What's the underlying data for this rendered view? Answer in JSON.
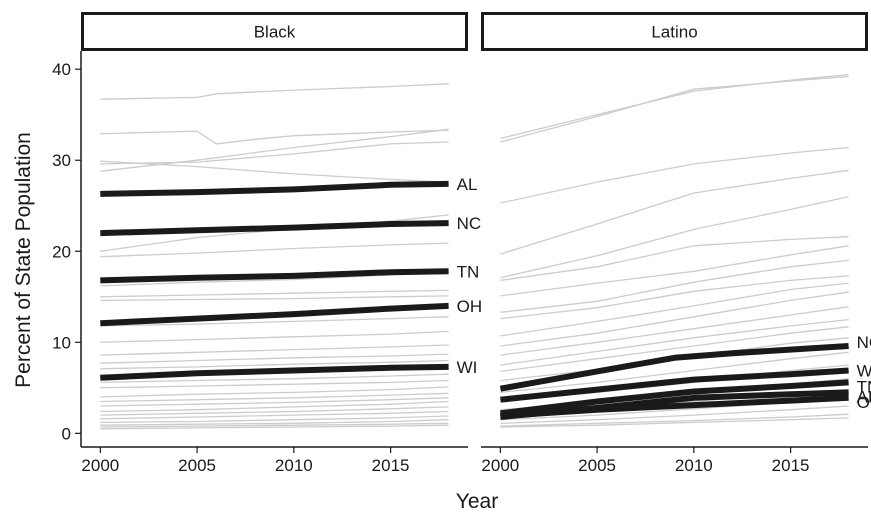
{
  "chart_data": {
    "type": "line",
    "xlabel": "Year",
    "ylabel": "Percent of State Population",
    "xlim": [
      1999,
      2019
    ],
    "ylim": [
      -1.5,
      42
    ],
    "xticks": [
      2000,
      2005,
      2010,
      2015
    ],
    "yticks": [
      0,
      10,
      20,
      30,
      40
    ],
    "grid": false,
    "colors": {
      "highlight": "#1a1a1a",
      "background": "#cccccc"
    },
    "panels": [
      {
        "title": "Black",
        "highlighted": [
          {
            "name": "AL",
            "x": [
              2000,
              2005,
              2010,
              2015,
              2018
            ],
            "y": [
              26.3,
              26.5,
              26.8,
              27.3,
              27.4
            ]
          },
          {
            "name": "NC",
            "x": [
              2000,
              2005,
              2010,
              2015,
              2018
            ],
            "y": [
              22.0,
              22.3,
              22.6,
              23.0,
              23.1
            ]
          },
          {
            "name": "TN",
            "x": [
              2000,
              2005,
              2010,
              2015,
              2018
            ],
            "y": [
              16.8,
              17.1,
              17.3,
              17.7,
              17.8
            ]
          },
          {
            "name": "OH",
            "x": [
              2000,
              2005,
              2010,
              2015,
              2018
            ],
            "y": [
              12.1,
              12.6,
              13.1,
              13.7,
              14.0
            ]
          },
          {
            "name": "WI",
            "x": [
              2000,
              2005,
              2010,
              2015,
              2018
            ],
            "y": [
              6.1,
              6.6,
              6.9,
              7.2,
              7.3
            ]
          }
        ],
        "others": [
          {
            "x": [
              2000,
              2005,
              2006,
              2010,
              2015,
              2018
            ],
            "y": [
              36.7,
              36.9,
              37.3,
              37.7,
              38.1,
              38.4
            ]
          },
          {
            "x": [
              2000,
              2005,
              2006,
              2008,
              2010,
              2015,
              2018
            ],
            "y": [
              32.9,
              33.2,
              31.8,
              32.3,
              32.7,
              33.1,
              33.3
            ]
          },
          {
            "x": [
              2000,
              2005,
              2010,
              2015,
              2018
            ],
            "y": [
              28.8,
              30.0,
              31.4,
              32.6,
              33.4
            ]
          },
          {
            "x": [
              2000,
              2005,
              2010,
              2015,
              2018
            ],
            "y": [
              29.9,
              29.3,
              28.5,
              27.9,
              27.6
            ]
          },
          {
            "x": [
              2000,
              2005,
              2010,
              2015,
              2018
            ],
            "y": [
              29.6,
              29.8,
              30.7,
              31.8,
              32.0
            ]
          },
          {
            "x": [
              2000,
              2005,
              2010,
              2015,
              2018
            ],
            "y": [
              20.0,
              21.5,
              22.5,
              23.3,
              24.0
            ]
          },
          {
            "x": [
              2000,
              2005,
              2010,
              2015,
              2018
            ],
            "y": [
              19.4,
              19.8,
              20.3,
              20.7,
              20.9
            ]
          },
          {
            "x": [
              2000,
              2005,
              2010,
              2015,
              2018
            ],
            "y": [
              16.2,
              16.6,
              16.9,
              17.4,
              17.8
            ]
          },
          {
            "x": [
              2000,
              2005,
              2010,
              2015,
              2018
            ],
            "y": [
              15.0,
              15.2,
              15.4,
              15.6,
              15.7
            ]
          },
          {
            "x": [
              2000,
              2005,
              2010,
              2015,
              2018
            ],
            "y": [
              14.6,
              14.7,
              14.8,
              15.0,
              15.1
            ]
          },
          {
            "x": [
              2000,
              2005,
              2010,
              2015,
              2018
            ],
            "y": [
              11.8,
              12.0,
              12.3,
              12.6,
              12.8
            ]
          },
          {
            "x": [
              2000,
              2005,
              2010,
              2015,
              2018
            ],
            "y": [
              10.0,
              10.3,
              10.6,
              10.9,
              11.2
            ]
          },
          {
            "x": [
              2000,
              2005,
              2010,
              2015,
              2018
            ],
            "y": [
              8.6,
              8.9,
              9.2,
              9.5,
              9.7
            ]
          },
          {
            "x": [
              2000,
              2005,
              2010,
              2015,
              2018
            ],
            "y": [
              7.7,
              8.0,
              8.3,
              8.5,
              8.7
            ]
          },
          {
            "x": [
              2000,
              2005,
              2010,
              2015,
              2018
            ],
            "y": [
              7.1,
              7.3,
              7.6,
              7.8,
              8.0
            ]
          },
          {
            "x": [
              2000,
              2005,
              2010,
              2015,
              2018
            ],
            "y": [
              5.6,
              5.8,
              6.0,
              6.3,
              6.5
            ]
          },
          {
            "x": [
              2000,
              2005,
              2010,
              2015,
              2018
            ],
            "y": [
              5.0,
              5.2,
              5.4,
              5.6,
              5.8
            ]
          },
          {
            "x": [
              2000,
              2005,
              2010,
              2015,
              2018
            ],
            "y": [
              4.0,
              4.3,
              4.5,
              4.8,
              5.1
            ]
          },
          {
            "x": [
              2000,
              2005,
              2010,
              2015,
              2018
            ],
            "y": [
              3.5,
              3.7,
              3.9,
              4.2,
              4.4
            ]
          },
          {
            "x": [
              2000,
              2005,
              2010,
              2015,
              2018
            ],
            "y": [
              3.0,
              3.2,
              3.4,
              3.7,
              3.9
            ]
          },
          {
            "x": [
              2000,
              2005,
              2010,
              2015,
              2018
            ],
            "y": [
              2.4,
              2.6,
              2.9,
              3.2,
              3.5
            ]
          },
          {
            "x": [
              2000,
              2005,
              2010,
              2015,
              2018
            ],
            "y": [
              2.0,
              2.2,
              2.4,
              2.7,
              2.9
            ]
          },
          {
            "x": [
              2000,
              2005,
              2010,
              2015,
              2018
            ],
            "y": [
              1.6,
              1.8,
              2.0,
              2.2,
              2.4
            ]
          },
          {
            "x": [
              2000,
              2005,
              2010,
              2015,
              2018
            ],
            "y": [
              1.2,
              1.3,
              1.5,
              1.7,
              1.9
            ]
          },
          {
            "x": [
              2000,
              2005,
              2010,
              2015,
              2018
            ],
            "y": [
              0.9,
              1.0,
              1.1,
              1.3,
              1.5
            ]
          },
          {
            "x": [
              2000,
              2005,
              2010,
              2015,
              2018
            ],
            "y": [
              0.7,
              0.8,
              0.9,
              1.0,
              1.1
            ]
          },
          {
            "x": [
              2000,
              2005,
              2010,
              2015,
              2018
            ],
            "y": [
              0.5,
              0.6,
              0.7,
              0.8,
              0.9
            ]
          }
        ]
      },
      {
        "title": "Latino",
        "highlighted": [
          {
            "name": "NC",
            "x": [
              2000,
              2005,
              2009,
              2012,
              2018
            ],
            "y": [
              4.9,
              6.8,
              8.3,
              8.8,
              9.6
            ]
          },
          {
            "name": "WI",
            "x": [
              2000,
              2005,
              2010,
              2015,
              2018
            ],
            "y": [
              3.7,
              4.8,
              5.9,
              6.5,
              6.9
            ]
          },
          {
            "name": "TN",
            "x": [
              2000,
              2005,
              2010,
              2015,
              2018
            ],
            "y": [
              2.2,
              3.5,
              4.6,
              5.2,
              5.6
            ]
          },
          {
            "name": "AL",
            "x": [
              2000,
              2005,
              2010,
              2015,
              2018
            ],
            "y": [
              1.8,
              2.8,
              3.9,
              4.3,
              4.5
            ]
          },
          {
            "name": "OH",
            "x": [
              2000,
              2005,
              2010,
              2015,
              2018
            ],
            "y": [
              1.9,
              2.6,
              3.1,
              3.6,
              3.9
            ]
          }
        ],
        "others": [
          {
            "x": [
              2000,
              2005,
              2010,
              2015,
              2018
            ],
            "y": [
              32.4,
              35.0,
              37.6,
              38.8,
              39.4
            ]
          },
          {
            "x": [
              2000,
              2005,
              2010,
              2015,
              2018
            ],
            "y": [
              32.0,
              34.8,
              37.8,
              38.7,
              39.2
            ]
          },
          {
            "x": [
              2000,
              2005,
              2010,
              2015,
              2018
            ],
            "y": [
              25.3,
              27.6,
              29.6,
              30.8,
              31.4
            ]
          },
          {
            "x": [
              2000,
              2005,
              2010,
              2015,
              2018
            ],
            "y": [
              19.7,
              23.0,
              26.4,
              28.0,
              28.9
            ]
          },
          {
            "x": [
              2000,
              2005,
              2010,
              2015,
              2018
            ],
            "y": [
              17.1,
              19.5,
              22.4,
              24.6,
              26.0
            ]
          },
          {
            "x": [
              2000,
              2005,
              2010,
              2015,
              2018
            ],
            "y": [
              16.8,
              18.3,
              20.6,
              21.3,
              21.6
            ]
          },
          {
            "x": [
              2000,
              2005,
              2010,
              2015,
              2018
            ],
            "y": [
              15.1,
              16.5,
              17.8,
              19.6,
              20.6
            ]
          },
          {
            "x": [
              2000,
              2005,
              2010,
              2015,
              2018
            ],
            "y": [
              13.3,
              14.5,
              16.6,
              18.3,
              19.0
            ]
          },
          {
            "x": [
              2000,
              2005,
              2010,
              2015,
              2018
            ],
            "y": [
              12.6,
              13.8,
              15.6,
              16.8,
              17.3
            ]
          },
          {
            "x": [
              2000,
              2005,
              2010,
              2015,
              2018
            ],
            "y": [
              10.7,
              12.3,
              14.0,
              15.8,
              16.5
            ]
          },
          {
            "x": [
              2000,
              2005,
              2010,
              2015,
              2018
            ],
            "y": [
              9.6,
              11.0,
              12.8,
              14.6,
              15.5
            ]
          },
          {
            "x": [
              2000,
              2005,
              2010,
              2015,
              2018
            ],
            "y": [
              8.6,
              10.0,
              11.5,
              13.0,
              13.9
            ]
          },
          {
            "x": [
              2000,
              2005,
              2010,
              2015,
              2018
            ],
            "y": [
              7.5,
              9.0,
              10.5,
              11.8,
              12.5
            ]
          },
          {
            "x": [
              2000,
              2005,
              2010,
              2015,
              2018
            ],
            "y": [
              6.8,
              8.2,
              9.6,
              11.0,
              11.7
            ]
          },
          {
            "x": [
              2000,
              2005,
              2010,
              2015,
              2018
            ],
            "y": [
              5.8,
              7.0,
              8.5,
              9.9,
              10.5
            ]
          },
          {
            "x": [
              2000,
              2005,
              2010,
              2015,
              2018
            ],
            "y": [
              4.5,
              5.6,
              6.9,
              8.2,
              8.9
            ]
          },
          {
            "x": [
              2000,
              2005,
              2010,
              2015,
              2018
            ],
            "y": [
              3.6,
              4.5,
              5.6,
              6.9,
              7.5
            ]
          },
          {
            "x": [
              2000,
              2005,
              2010,
              2015,
              2018
            ],
            "y": [
              2.6,
              3.4,
              4.4,
              5.4,
              6.0
            ]
          },
          {
            "x": [
              2000,
              2005,
              2010,
              2015,
              2018
            ],
            "y": [
              2.0,
              2.7,
              3.5,
              4.4,
              4.8
            ]
          },
          {
            "x": [
              2000,
              2005,
              2010,
              2015,
              2018
            ],
            "y": [
              1.5,
              2.0,
              2.7,
              3.4,
              3.8
            ]
          },
          {
            "x": [
              2000,
              2005,
              2010,
              2015,
              2018
            ],
            "y": [
              1.1,
              1.5,
              2.0,
              2.6,
              3.0
            ]
          },
          {
            "x": [
              2000,
              2005,
              2010,
              2015,
              2018
            ],
            "y": [
              0.8,
              1.1,
              1.4,
              1.8,
              2.1
            ]
          },
          {
            "x": [
              2000,
              2005,
              2010,
              2015,
              2018
            ],
            "y": [
              0.7,
              0.9,
              1.2,
              1.5,
              1.7
            ]
          }
        ]
      }
    ]
  }
}
